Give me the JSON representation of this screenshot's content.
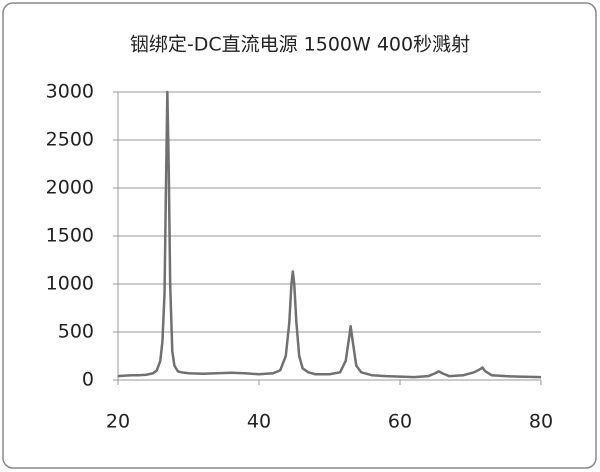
{
  "chart_data": {
    "type": "line",
    "title": "铟绑定-DC直流电源 1500W 400秒溅射",
    "x": [
      20,
      21,
      22,
      23,
      24,
      25,
      25.5,
      26,
      26.3,
      26.6,
      26.8,
      27,
      27.2,
      27.4,
      27.7,
      28,
      28.5,
      29,
      30,
      32,
      34,
      36,
      38,
      40,
      42,
      43,
      43.8,
      44.3,
      44.6,
      44.8,
      45,
      45.3,
      45.7,
      46.2,
      47,
      48,
      50,
      51.5,
      52.3,
      52.8,
      53,
      53.3,
      53.8,
      54.5,
      56,
      58,
      60,
      62,
      64,
      65,
      65.5,
      66,
      67,
      69,
      70.5,
      71.3,
      71.7,
      72.1,
      73,
      75,
      77,
      80
    ],
    "series": [
      {
        "color": "#707070",
        "values": [
          40,
          45,
          50,
          50,
          55,
          70,
          100,
          200,
          400,
          900,
          2000,
          3000,
          2200,
          1000,
          300,
          150,
          90,
          80,
          70,
          65,
          70,
          75,
          70,
          60,
          70,
          100,
          250,
          600,
          1000,
          1130,
          1000,
          600,
          250,
          120,
          80,
          60,
          60,
          80,
          200,
          450,
          560,
          400,
          150,
          80,
          50,
          40,
          35,
          30,
          40,
          70,
          90,
          70,
          40,
          50,
          80,
          110,
          130,
          90,
          50,
          40,
          35,
          30
        ]
      }
    ],
    "xlim": [
      20,
      80
    ],
    "xticks": [
      20,
      40,
      60,
      80
    ],
    "ylim": [
      0,
      3000
    ],
    "yticks": [
      0,
      500,
      1000,
      1500,
      2000,
      2500,
      3000
    ],
    "grid": true
  }
}
